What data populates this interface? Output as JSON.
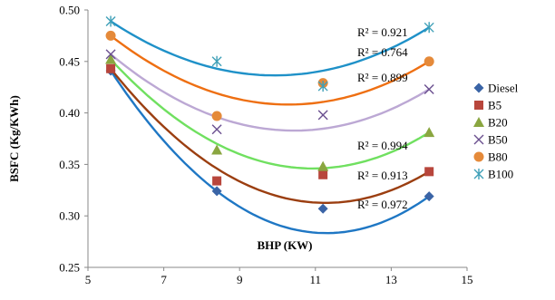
{
  "chart_data": {
    "type": "scatter",
    "title": "",
    "xlabel": "BHP (KW)",
    "ylabel": "BSFC (Kg/KWh)",
    "xlim": [
      5,
      15
    ],
    "ylim": [
      0.25,
      0.5
    ],
    "xticks": [
      5,
      7,
      9,
      11,
      13,
      15
    ],
    "yticks": [
      0.25,
      0.3,
      0.35,
      0.4,
      0.45,
      0.5
    ],
    "xtick_labels": [
      "5",
      "7",
      "9",
      "11",
      "13",
      "15"
    ],
    "ytick_labels": [
      "0.25",
      "0.30",
      "0.35",
      "0.40",
      "0.45",
      "0.50"
    ],
    "grid": false,
    "legend_position": "right",
    "trendline": "polynomial (order 2)",
    "series": [
      {
        "name": "Diesel",
        "marker": "diamond",
        "color": "#3a64a6",
        "trend_color": "#1f77c4",
        "x": [
          5.6,
          8.4,
          11.2,
          14.0
        ],
        "y": [
          0.441,
          0.324,
          0.307,
          0.319
        ],
        "trend_y": [
          0.441,
          0.324,
          0.293,
          0.319
        ],
        "r2": "R² = 0.972"
      },
      {
        "name": "B5",
        "marker": "square",
        "color": "#b8463c",
        "trend_color": "#9b3e10",
        "x": [
          5.6,
          8.4,
          11.2,
          14.0
        ],
        "y": [
          0.443,
          0.334,
          0.34,
          0.343
        ],
        "trend_y": [
          0.443,
          0.346,
          0.322,
          0.343
        ],
        "r2": "R² = 0.913"
      },
      {
        "name": "B20",
        "marker": "triangle",
        "color": "#8aa640",
        "trend_color": "#70e060",
        "x": [
          5.6,
          8.4,
          11.2,
          14.0
        ],
        "y": [
          0.452,
          0.364,
          0.348,
          0.381
        ],
        "trend_y": [
          0.452,
          0.37,
          0.345,
          0.381
        ],
        "r2": "R² = 0.994"
      },
      {
        "name": "B50",
        "marker": "x",
        "color": "#6a4f8f",
        "trend_color": "#bca8d4",
        "x": [
          5.6,
          8.4,
          11.2,
          14.0
        ],
        "y": [
          0.457,
          0.384,
          0.398,
          0.423
        ],
        "trend_y": [
          0.457,
          0.396,
          0.387,
          0.423
        ],
        "r2": "R² = 0.899"
      },
      {
        "name": "B80",
        "marker": "circle",
        "color": "#e58a3a",
        "trend_color": "#ee6f12",
        "x": [
          5.6,
          8.4,
          11.2,
          14.0
        ],
        "y": [
          0.475,
          0.397,
          0.429,
          0.45
        ],
        "trend_y": [
          0.475,
          0.419,
          0.414,
          0.45
        ],
        "r2": "R² = 0.764"
      },
      {
        "name": "B100",
        "marker": "asterisk",
        "color": "#3fa0b8",
        "trend_color": "#1f91c8",
        "x": [
          5.6,
          8.4,
          11.2,
          14.0
        ],
        "y": [
          0.489,
          0.45,
          0.426,
          0.483
        ],
        "trend_y": [
          0.489,
          0.443,
          0.436,
          0.483
        ],
        "r2": "R² = 0.921"
      }
    ],
    "annotations": [
      "R² = 0.921",
      "R² = 0.764",
      "R² = 0.899",
      "R² = 0.994",
      "R² = 0.913",
      "R² = 0.972"
    ]
  }
}
